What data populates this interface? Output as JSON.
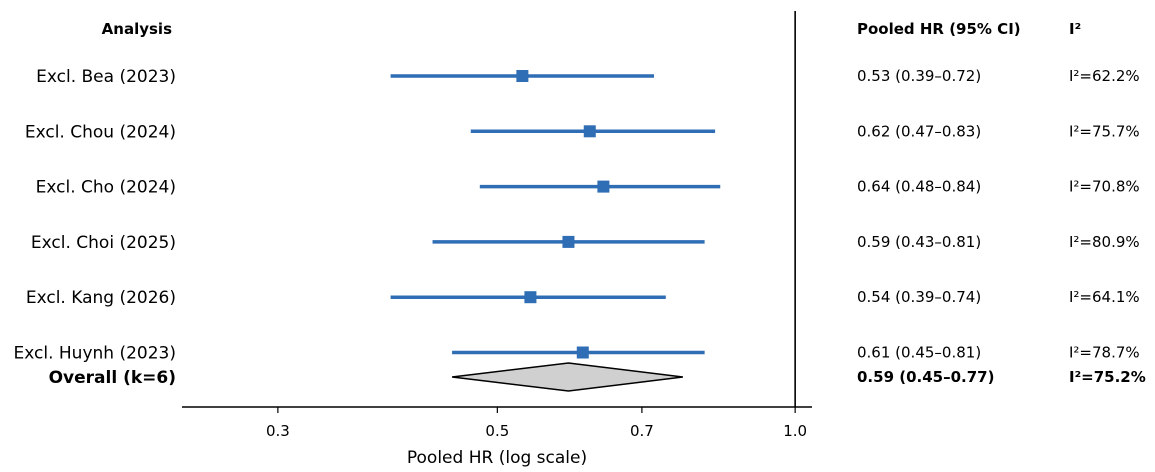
{
  "chart_data": {
    "type": "forest",
    "headers": {
      "analysis": "Analysis",
      "pooled_hr": "Pooled HR (95% CI)",
      "i2": "I²"
    },
    "rows": [
      {
        "label": "Excl. Bea (2023)",
        "hr": 0.53,
        "lo": 0.39,
        "hi": 0.72,
        "ci_text": "0.53 (0.39–0.72)",
        "i2_text": "I²=62.2%"
      },
      {
        "label": "Excl. Chou (2024)",
        "hr": 0.62,
        "lo": 0.47,
        "hi": 0.83,
        "ci_text": "0.62 (0.47–0.83)",
        "i2_text": "I²=75.7%"
      },
      {
        "label": "Excl. Cho (2024)",
        "hr": 0.64,
        "lo": 0.48,
        "hi": 0.84,
        "ci_text": "0.64 (0.48–0.84)",
        "i2_text": "I²=70.8%"
      },
      {
        "label": "Excl. Choi (2025)",
        "hr": 0.59,
        "lo": 0.43,
        "hi": 0.81,
        "ci_text": "0.59 (0.43–0.81)",
        "i2_text": "I²=80.9%"
      },
      {
        "label": "Excl. Kang (2026)",
        "hr": 0.54,
        "lo": 0.39,
        "hi": 0.74,
        "ci_text": "0.54 (0.39–0.74)",
        "i2_text": "I²=64.1%"
      },
      {
        "label": "Excl. Huynh (2023)",
        "hr": 0.61,
        "lo": 0.45,
        "hi": 0.81,
        "ci_text": "0.61 (0.45–0.81)",
        "i2_text": "I²=78.7%"
      }
    ],
    "overall": {
      "label": "Overall (k=6)",
      "hr": 0.59,
      "lo": 0.45,
      "hi": 0.77,
      "ci_text": "0.59 (0.45–0.77)",
      "i2_text": "I²=75.2%"
    },
    "x_axis": {
      "label": "Pooled HR (log scale)",
      "scale": "log",
      "ticks": [
        0.3,
        0.5,
        0.7,
        1.0
      ],
      "tick_labels": [
        "0.3",
        "0.5",
        "0.7",
        "1.0"
      ],
      "xlim": [
        0.24,
        1.04
      ],
      "reference_line": 1.0
    },
    "colors": {
      "marker": "#2f6db5",
      "diamond_fill": "#d0d0d0",
      "diamond_stroke": "#000000",
      "axis": "#000000"
    }
  }
}
